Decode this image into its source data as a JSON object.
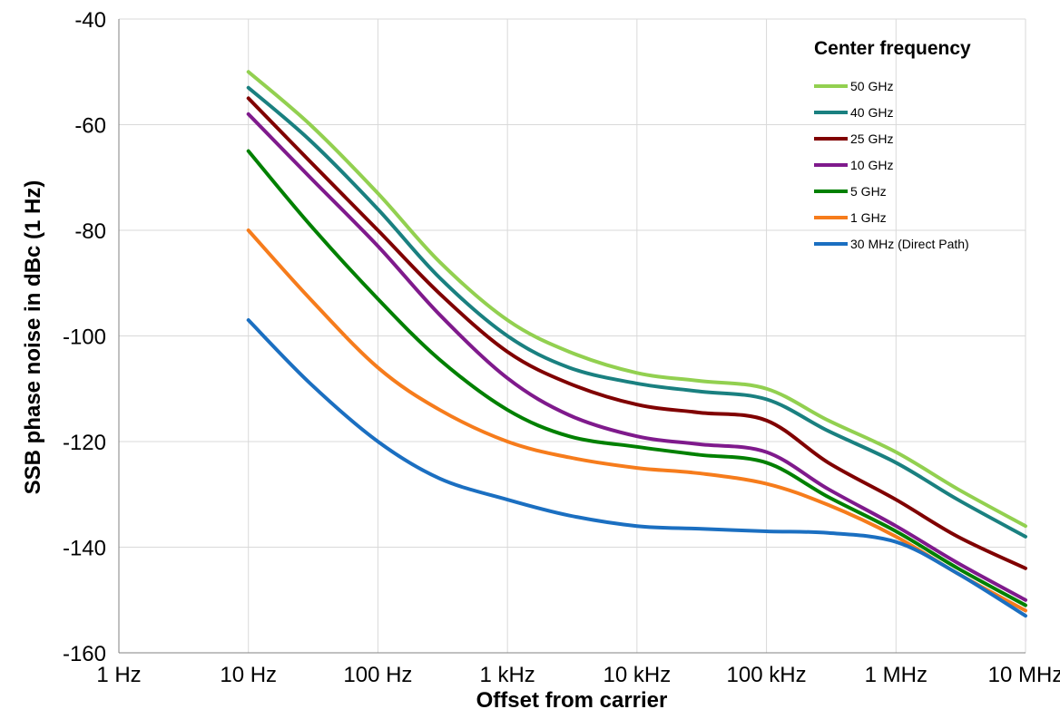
{
  "chart_data": {
    "type": "line",
    "xlabel": "Offset from carrier",
    "ylabel": "SSB phase noise in dBc (1 Hz)",
    "x_scale": "log",
    "xlim": [
      1,
      10000000
    ],
    "ylim": [
      -160,
      -40
    ],
    "x_ticks": [
      {
        "value": 1,
        "label": "1 Hz"
      },
      {
        "value": 10,
        "label": "10 Hz"
      },
      {
        "value": 100,
        "label": "100 Hz"
      },
      {
        "value": 1000,
        "label": "1 kHz"
      },
      {
        "value": 10000,
        "label": "10 kHz"
      },
      {
        "value": 100000,
        "label": "100 kHz"
      },
      {
        "value": 1000000,
        "label": "1 MHz"
      },
      {
        "value": 10000000,
        "label": "10 MHz"
      }
    ],
    "y_ticks": [
      {
        "value": -40,
        "label": "-40"
      },
      {
        "value": -60,
        "label": "-60"
      },
      {
        "value": -80,
        "label": "-80"
      },
      {
        "value": -100,
        "label": "-100"
      },
      {
        "value": -120,
        "label": "-120"
      },
      {
        "value": -140,
        "label": "-140"
      },
      {
        "value": -160,
        "label": "-160"
      }
    ],
    "grid": true,
    "legend": {
      "title": "Center frequency",
      "placement": "top-right"
    },
    "x": [
      10,
      30,
      100,
      300,
      1000,
      3000,
      10000,
      30000,
      100000,
      300000,
      1000000,
      3000000,
      10000000
    ],
    "series": [
      {
        "name": "50 GHz",
        "color": "#92D050",
        "values": [
          -50,
          -60,
          -73,
          -86,
          -97,
          -103,
          -107,
          -108.5,
          -110,
          -116,
          -122,
          -129,
          -136
        ]
      },
      {
        "name": "40 GHz",
        "color": "#1A8080",
        "values": [
          -53,
          -63,
          -76,
          -89,
          -100,
          -106,
          -109,
          -110.5,
          -112,
          -118,
          -124,
          -131,
          -138
        ]
      },
      {
        "name": "25 GHz",
        "color": "#800000",
        "values": [
          -55,
          -67,
          -80,
          -92,
          -103,
          -109,
          -113,
          -114.5,
          -116,
          -124,
          -131,
          -138,
          -144
        ]
      },
      {
        "name": "10 GHz",
        "color": "#7F1A8C",
        "values": [
          -58,
          -70,
          -83,
          -96,
          -108,
          -115,
          -119,
          -120.5,
          -122,
          -129,
          -136,
          -143,
          -150
        ]
      },
      {
        "name": "5 GHz",
        "color": "#008000",
        "values": [
          -65,
          -79,
          -93,
          -104.5,
          -114,
          -119,
          -121,
          -122.5,
          -124,
          -130.5,
          -137,
          -144,
          -151
        ]
      },
      {
        "name": "1 GHz",
        "color": "#F67C1C",
        "values": [
          -80,
          -93,
          -106,
          -114,
          -120,
          -123,
          -125,
          -126,
          -128,
          -132,
          -138,
          -145,
          -152
        ]
      },
      {
        "name": "30 MHz (Direct Path)",
        "color": "#1B6FC1",
        "values": [
          -97,
          -109,
          -120,
          -127,
          -131,
          -134,
          -136,
          -136.5,
          -137,
          -137.3,
          -139,
          -145,
          -153
        ]
      }
    ]
  }
}
